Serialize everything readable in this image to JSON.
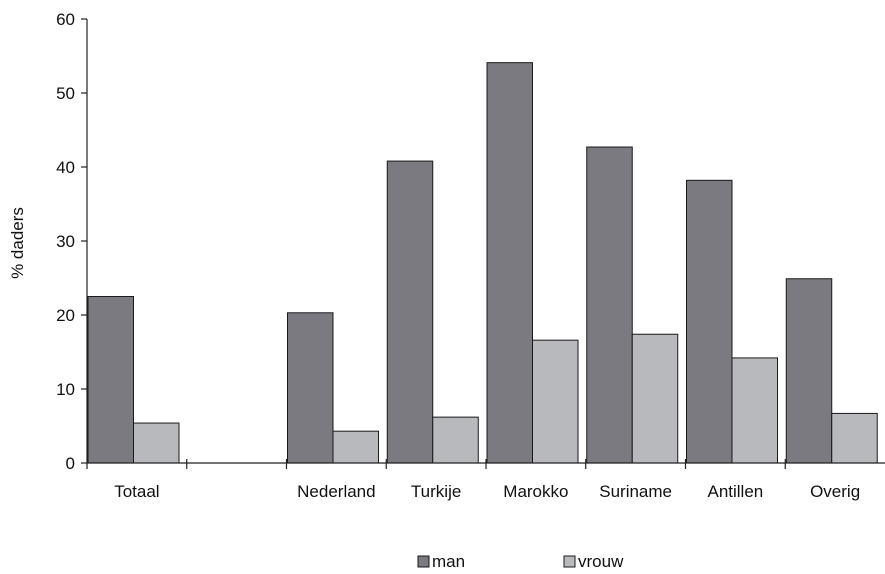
{
  "chart_data": {
    "type": "bar",
    "categories": [
      "Totaal",
      "",
      "Nederland",
      "Turkije",
      "Marokko",
      "Suriname",
      "Antillen",
      "Overig"
    ],
    "series": [
      {
        "name": "man",
        "values": [
          22.5,
          null,
          20.3,
          40.8,
          54.1,
          42.7,
          38.2,
          24.9
        ],
        "color": "#7a7a80"
      },
      {
        "name": "vrouw",
        "values": [
          5.4,
          null,
          4.3,
          6.2,
          16.6,
          17.4,
          14.2,
          6.7
        ],
        "color": "#b8b9bd"
      }
    ],
    "ylabel": "% daders",
    "xlabel": "",
    "title": "",
    "ylim": [
      0,
      60
    ],
    "yticks": [
      0,
      10,
      20,
      30,
      40,
      50,
      60
    ],
    "grid": false,
    "legend_position": "bottom-center"
  }
}
